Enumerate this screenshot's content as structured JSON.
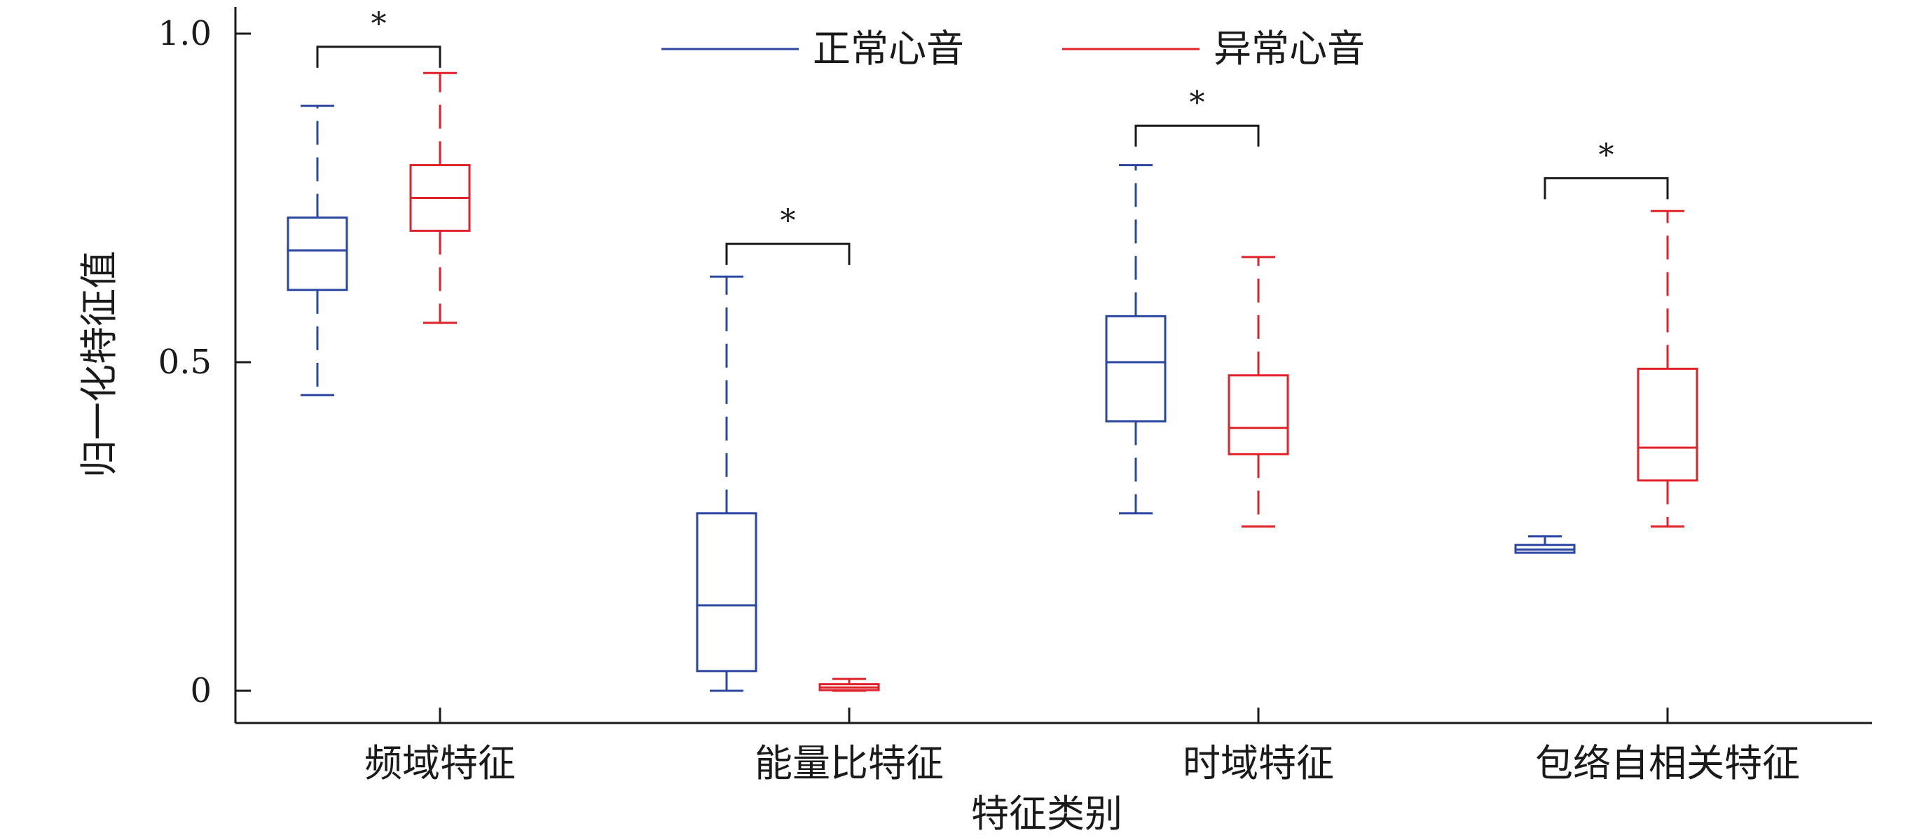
{
  "chart_data": {
    "type": "box",
    "title": "",
    "xlabel": "特征类别",
    "ylabel": "归一化特征值",
    "ylim": [
      -0.05,
      1.05
    ],
    "yticks": [
      {
        "value": 0,
        "label": "0"
      },
      {
        "value": 0.5,
        "label": "0.5"
      },
      {
        "value": 1.0,
        "label": "1.0"
      }
    ],
    "categories": [
      "频域特征",
      "能量比特征",
      "时域特征",
      "包络自相关特征"
    ],
    "grid": false,
    "legend_position": "top-center",
    "series": [
      {
        "name": "正常心音",
        "color": "#2a46a0",
        "boxes": [
          {
            "whisker_low": 0.45,
            "q1": 0.61,
            "median": 0.67,
            "q3": 0.72,
            "whisker_high": 0.89
          },
          {
            "whisker_low": 0.0,
            "q1": 0.03,
            "median": 0.13,
            "q3": 0.27,
            "whisker_high": 0.63
          },
          {
            "whisker_low": 0.27,
            "q1": 0.41,
            "median": 0.5,
            "q3": 0.57,
            "whisker_high": 0.8
          },
          {
            "whisker_low": 0.21,
            "q1": 0.21,
            "median": 0.215,
            "q3": 0.222,
            "whisker_high": 0.235
          }
        ]
      },
      {
        "name": "异常心音",
        "color": "#e0222a",
        "boxes": [
          {
            "whisker_low": 0.56,
            "q1": 0.7,
            "median": 0.75,
            "q3": 0.8,
            "whisker_high": 0.94
          },
          {
            "whisker_low": 0.0,
            "q1": 0.001,
            "median": 0.005,
            "q3": 0.01,
            "whisker_high": 0.018
          },
          {
            "whisker_low": 0.25,
            "q1": 0.36,
            "median": 0.4,
            "q3": 0.48,
            "whisker_high": 0.66
          },
          {
            "whisker_low": 0.25,
            "q1": 0.32,
            "median": 0.37,
            "q3": 0.49,
            "whisker_high": 0.73
          }
        ]
      }
    ],
    "significance": [
      {
        "category": "频域特征",
        "label": "*",
        "bracket_y": 0.98
      },
      {
        "category": "能量比特征",
        "label": "*",
        "bracket_y": 0.68
      },
      {
        "category": "时域特征",
        "label": "*",
        "bracket_y": 0.86
      },
      {
        "category": "包络自相关特征",
        "label": "*",
        "bracket_y": 0.78
      }
    ]
  }
}
